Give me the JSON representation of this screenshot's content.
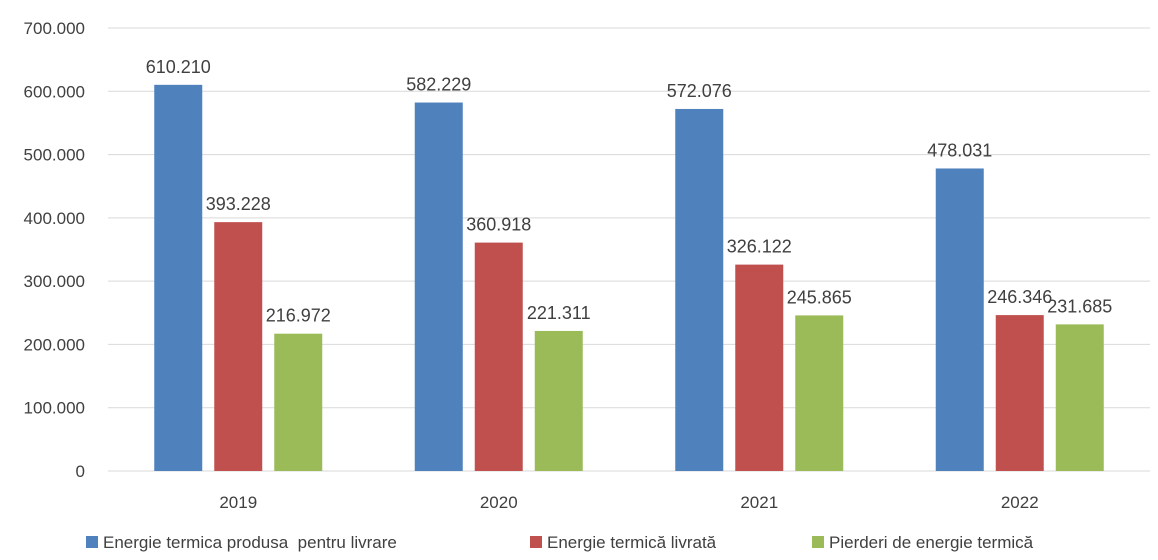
{
  "chart_data": {
    "type": "bar",
    "title": "",
    "xlabel": "",
    "ylabel": "",
    "categories": [
      "2019",
      "2020",
      "2021",
      "2022"
    ],
    "series": [
      {
        "name": "Energie termica produsa  pentru livrare",
        "color": "#4f81bd",
        "values": [
          610210,
          582229,
          572076,
          478031
        ],
        "labels": [
          "610.210",
          "582.229",
          "572.076",
          "478.031"
        ]
      },
      {
        "name": "Energie termică livrată",
        "color": "#c0504d",
        "values": [
          393228,
          360918,
          326122,
          246346
        ],
        "labels": [
          "393.228",
          "360.918",
          "326.122",
          "246.346"
        ]
      },
      {
        "name": "Pierderi de energie termică",
        "color": "#9bbb59",
        "values": [
          216972,
          221311,
          245865,
          231685
        ],
        "labels": [
          "216.972",
          "221.311",
          "245.865",
          "231.685"
        ]
      }
    ],
    "ylim": [
      0,
      700000
    ],
    "yticks": [
      0,
      100000,
      200000,
      300000,
      400000,
      500000,
      600000,
      700000
    ],
    "ytick_labels": [
      "0",
      "100.000",
      "200.000",
      "300.000",
      "400.000",
      "500.000",
      "600.000",
      "700.000"
    ],
    "grid": true,
    "legend_position": "bottom"
  }
}
